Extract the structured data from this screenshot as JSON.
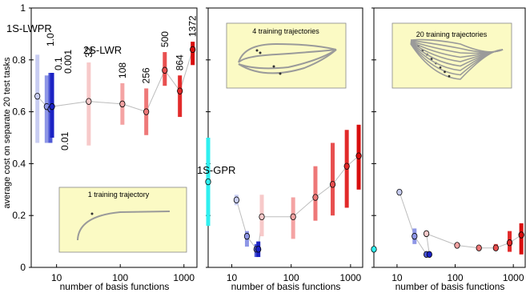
{
  "ylabel": "average cost on separate 20 test tasks",
  "xlabel": "number of basis functions",
  "yticks": [
    0,
    0.2,
    0.4,
    0.6,
    0.8,
    1
  ],
  "ytick_labels": [
    "0",
    "0.2",
    "0.4",
    "0.6",
    "0.8",
    "1"
  ],
  "xticks": [
    10,
    100,
    1000
  ],
  "xtick_labels": [
    "10",
    "100",
    "1000"
  ],
  "colors": {
    "lwpr_shades": [
      "#c8cdf2",
      "#8e96e6",
      "#4f5ad6",
      "#1b22c4"
    ],
    "lwr_shades": [
      "#f7c9c9",
      "#f4a3a3",
      "#ee7878",
      "#e84f4f",
      "#e22a2a",
      "#d80d0d"
    ],
    "gpr": "#2ff0f0",
    "line": "#bdbdbd",
    "inset_bg": "#fbfac4"
  },
  "chart_data": [
    {
      "type": "scatter",
      "panel": 1,
      "xscale": "log",
      "xlim": [
        4,
        1600
      ],
      "ylim": [
        0,
        1
      ],
      "inset_title": "1 training trajectory",
      "labels": {
        "lwpr": "1S-LWPR",
        "lwr": "2S-LWR",
        "lwpr_points": [
          "1.0",
          "0.1",
          "0.001",
          "0.01"
        ],
        "lwr_points": [
          "32",
          "108",
          "256",
          "500",
          "864",
          "1372"
        ]
      },
      "series": [
        {
          "name": "1S-LWPR",
          "x": [
            5,
            7,
            8,
            8.5
          ],
          "y": [
            0.66,
            0.62,
            0.61,
            0.62
          ],
          "low": [
            0.48,
            0.48,
            0.48,
            0.5
          ],
          "high": [
            0.82,
            0.74,
            0.75,
            0.75
          ]
        },
        {
          "name": "2S-LWR",
          "x": [
            32,
            108,
            256,
            500,
            864,
            1372
          ],
          "y": [
            0.64,
            0.63,
            0.6,
            0.76,
            0.68,
            0.84
          ],
          "low": [
            0.47,
            0.55,
            0.51,
            0.7,
            0.58,
            0.78
          ],
          "high": [
            0.79,
            0.71,
            0.69,
            0.83,
            0.74,
            0.87
          ]
        }
      ]
    },
    {
      "type": "scatter",
      "panel": 2,
      "xscale": "log",
      "xlim": [
        4,
        1600
      ],
      "ylim": [
        0,
        1
      ],
      "inset_title": "4 training trajectories",
      "labels": {
        "gpr": "1S-GPR"
      },
      "series": [
        {
          "name": "1S-GPR",
          "x": [
            4
          ],
          "y": [
            0.33
          ],
          "low": [
            0.16
          ],
          "high": [
            0.5
          ]
        },
        {
          "name": "1S-LWPR",
          "x": [
            12,
            18,
            26,
            28
          ],
          "y": [
            0.26,
            0.12,
            0.07,
            0.07
          ],
          "low": [
            0.24,
            0.08,
            0.04,
            0.04
          ],
          "high": [
            0.28,
            0.14,
            0.09,
            0.1
          ]
        },
        {
          "name": "2S-LWR",
          "x": [
            32,
            108,
            256,
            500,
            864,
            1372
          ],
          "y": [
            0.195,
            0.195,
            0.27,
            0.32,
            0.39,
            0.43
          ],
          "low": [
            0.12,
            0.11,
            0.18,
            0.2,
            0.23,
            0.3
          ],
          "high": [
            0.28,
            0.27,
            0.39,
            0.48,
            0.53,
            0.55
          ]
        }
      ]
    },
    {
      "type": "scatter",
      "panel": 3,
      "xscale": "log",
      "xlim": [
        4,
        1600
      ],
      "ylim": [
        0,
        1
      ],
      "inset_title": "20 training trajectories",
      "series": [
        {
          "name": "1S-GPR",
          "x": [
            4
          ],
          "y": [
            0.07
          ],
          "low": [
            0.06
          ],
          "high": [
            0.08
          ]
        },
        {
          "name": "1S-LWPR",
          "x": [
            11,
            20,
            32,
            36
          ],
          "y": [
            0.29,
            0.12,
            0.05,
            0.05
          ],
          "low": [
            0.28,
            0.09,
            0.045,
            0.045
          ],
          "high": [
            0.3,
            0.15,
            0.055,
            0.055
          ]
        },
        {
          "name": "2S-LWR",
          "x": [
            32,
            108,
            256,
            500,
            864,
            1372
          ],
          "y": [
            0.13,
            0.085,
            0.075,
            0.075,
            0.095,
            0.125
          ],
          "low": [
            0.12,
            0.08,
            0.07,
            0.065,
            0.06,
            0.05
          ],
          "high": [
            0.14,
            0.09,
            0.08,
            0.09,
            0.14,
            0.17
          ]
        }
      ]
    }
  ]
}
